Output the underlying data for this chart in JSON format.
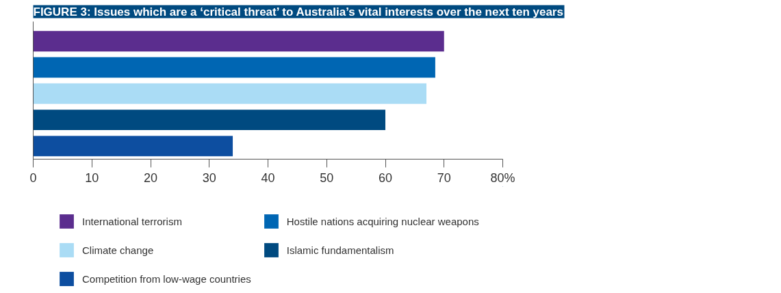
{
  "chart_data": {
    "type": "bar",
    "orientation": "horizontal",
    "title": "FIGURE 3: Issues which are a ‘critical threat’ to Australia’s vital interests over the next ten years",
    "categories": [
      null,
      null,
      null,
      null,
      null
    ],
    "series": [
      {
        "name": "International terrorism",
        "color": "#5b2d8e",
        "values": [
          70,
          null,
          null,
          null,
          null
        ]
      },
      {
        "name": "Hostile nations acquiring nuclear weapons",
        "color": "#0066b3",
        "values": [
          null,
          68.5,
          null,
          null,
          null
        ]
      },
      {
        "name": "Climate change",
        "color": "#aadcf5",
        "values": [
          null,
          null,
          67,
          null,
          null
        ]
      },
      {
        "name": "Islamic fundamentalism",
        "color": "#004a80",
        "values": [
          null,
          null,
          null,
          60,
          null
        ]
      },
      {
        "name": "Competition from low-wage countries",
        "color": "#0d4ea0",
        "values": [
          null,
          null,
          null,
          null,
          34
        ]
      }
    ],
    "xlim": [
      0,
      80
    ],
    "xticks": [
      0,
      10,
      20,
      30,
      40,
      50,
      60,
      70,
      {
        "value": 80,
        "label": "80%"
      }
    ],
    "grid": false,
    "legend": "bottom"
  }
}
